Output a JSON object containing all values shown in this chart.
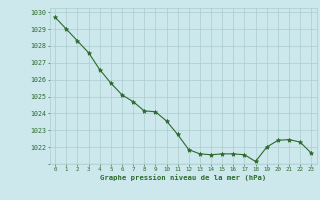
{
  "x": [
    0,
    1,
    2,
    3,
    4,
    5,
    6,
    7,
    8,
    9,
    10,
    11,
    12,
    13,
    14,
    15,
    16,
    17,
    18,
    19,
    20,
    21,
    22,
    23
  ],
  "y": [
    1029.7,
    1029.0,
    1028.3,
    1027.6,
    1026.6,
    1025.8,
    1025.1,
    1024.7,
    1024.15,
    1024.1,
    1023.55,
    1022.75,
    1021.85,
    1021.6,
    1021.55,
    1021.6,
    1021.6,
    1021.55,
    1021.15,
    1022.0,
    1022.4,
    1022.45,
    1022.3,
    1021.65
  ],
  "ylim": [
    1021.0,
    1030.25
  ],
  "yticks": [
    1022,
    1023,
    1024,
    1025,
    1026,
    1027,
    1028,
    1029,
    1030
  ],
  "xlim": [
    -0.5,
    23.5
  ],
  "xticks": [
    0,
    1,
    2,
    3,
    4,
    5,
    6,
    7,
    8,
    9,
    10,
    11,
    12,
    13,
    14,
    15,
    16,
    17,
    18,
    19,
    20,
    21,
    22,
    23
  ],
  "line_color": "#2d6a2d",
  "marker": "*",
  "marker_color": "#2d6a2d",
  "bg_color": "#cce8ec",
  "grid_color": "#aacccc",
  "xlabel": "Graphe pression niveau de la mer (hPa)",
  "xlabel_color": "#2d6a2d",
  "tick_color": "#2d6a2d"
}
